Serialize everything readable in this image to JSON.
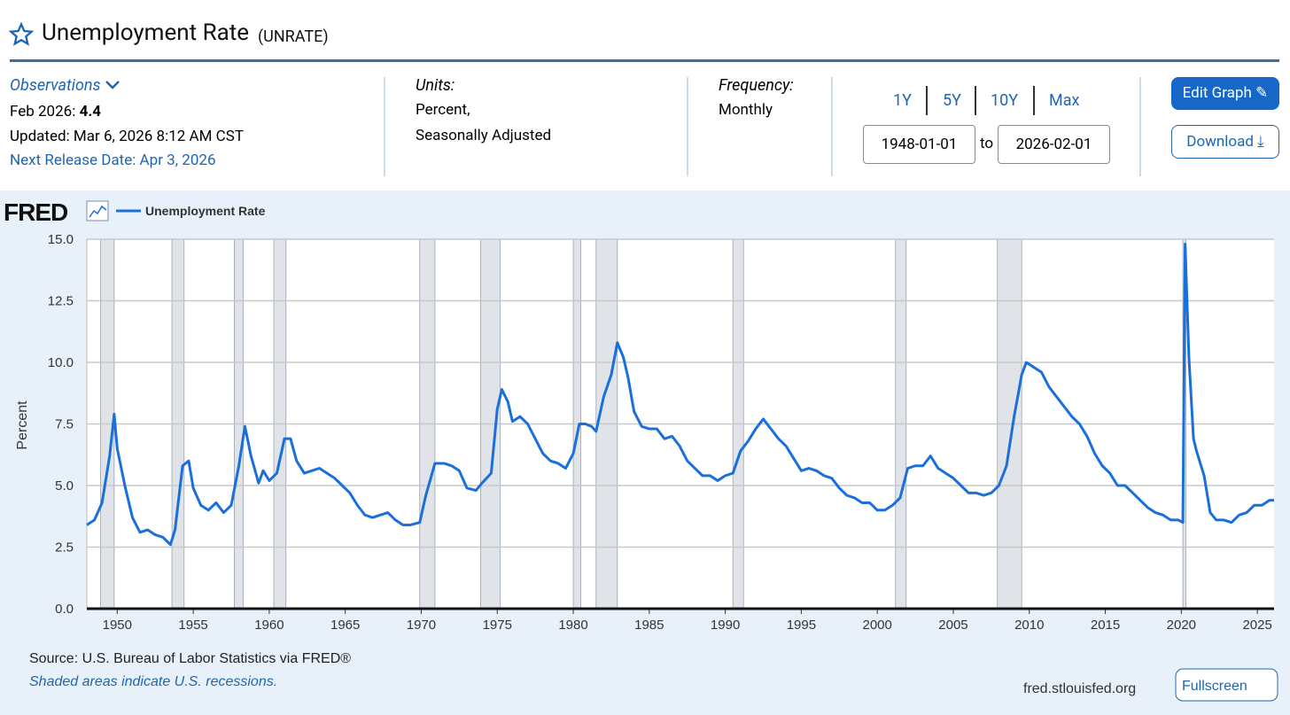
{
  "header": {
    "title": "Unemployment Rate",
    "code": "(UNRATE)"
  },
  "observations": {
    "label": "Observations",
    "date": "Feb 2026:",
    "value": "4.4",
    "updated": "Updated: Mar 6, 2026 8:12 AM CST",
    "next_release": "Next Release Date: Apr 3, 2026"
  },
  "units": {
    "label": "Units:",
    "lines": [
      "Percent,",
      "Seasonally Adjusted"
    ]
  },
  "frequency": {
    "label": "Frequency:",
    "value": "Monthly"
  },
  "ranges": [
    "1Y",
    "5Y",
    "10Y",
    "Max"
  ],
  "date_range": {
    "start": "1948-01-01",
    "to": "to",
    "end": "2026-02-01"
  },
  "buttons": {
    "edit": "Edit Graph",
    "download": "Download",
    "fullscreen": "Fullscreen"
  },
  "logo": "FRED",
  "footer": {
    "source": "Source: U.S. Bureau of Labor Statistics via FRED®",
    "note": "Shaded areas indicate U.S. recessions.",
    "site": "fred.stlouisfed.org"
  },
  "chart_data": {
    "type": "line",
    "y_label": "Percent",
    "xlim": [
      1948,
      2026.1
    ],
    "xticks": [
      1950,
      1955,
      1960,
      1965,
      1970,
      1975,
      1980,
      1985,
      1990,
      1995,
      2000,
      2005,
      2010,
      2015,
      2020,
      2025
    ],
    "ylim": [
      0,
      15
    ],
    "yticks": [
      {
        "value": 0,
        "label": "0.0"
      },
      2.5,
      {
        "value": 5,
        "label": "5.0"
      },
      7.5,
      {
        "value": 10,
        "label": "10.0"
      },
      12.5,
      {
        "value": 15,
        "label": "15.0"
      }
    ],
    "grid": true,
    "recession_color": "#e0e4e9",
    "recessions": [
      [
        1948.9,
        1949.8
      ],
      [
        1953.6,
        1954.4
      ],
      [
        1957.7,
        1958.3
      ],
      [
        1960.3,
        1961.1
      ],
      [
        1969.9,
        1970.9
      ],
      [
        1973.9,
        1975.2
      ],
      [
        1980.0,
        1980.5
      ],
      [
        1981.5,
        1982.9
      ],
      [
        1990.5,
        1991.2
      ],
      [
        2001.2,
        2001.9
      ],
      [
        2007.9,
        2009.5
      ],
      [
        2020.1,
        2020.3
      ]
    ],
    "x": [
      1948.0,
      1948.5,
      1949.0,
      1949.5,
      1949.8,
      1950.0,
      1950.5,
      1951.0,
      1951.5,
      1952.0,
      1952.5,
      1953.0,
      1953.5,
      1953.8,
      1954.3,
      1954.7,
      1955.0,
      1955.5,
      1956.0,
      1956.5,
      1957.0,
      1957.5,
      1958.0,
      1958.4,
      1958.8,
      1959.3,
      1959.6,
      1960.0,
      1960.5,
      1961.0,
      1961.4,
      1961.8,
      1962.3,
      1962.8,
      1963.3,
      1963.8,
      1964.3,
      1964.8,
      1965.3,
      1965.8,
      1966.3,
      1966.8,
      1967.3,
      1967.8,
      1968.3,
      1968.8,
      1969.3,
      1969.9,
      1970.3,
      1970.9,
      1971.5,
      1972.0,
      1972.5,
      1973.0,
      1973.6,
      1974.0,
      1974.6,
      1975.0,
      1975.3,
      1975.7,
      1976.0,
      1976.5,
      1977.0,
      1977.5,
      1978.0,
      1978.5,
      1979.0,
      1979.5,
      1980.0,
      1980.4,
      1980.8,
      1981.2,
      1981.5,
      1982.0,
      1982.5,
      1982.9,
      1983.3,
      1983.6,
      1984.0,
      1984.5,
      1985.0,
      1985.5,
      1986.0,
      1986.5,
      1987.0,
      1987.5,
      1988.0,
      1988.5,
      1989.0,
      1989.5,
      1990.0,
      1990.5,
      1991.0,
      1991.5,
      1992.0,
      1992.5,
      1993.0,
      1993.5,
      1994.0,
      1994.5,
      1995.0,
      1995.5,
      1996.0,
      1996.5,
      1997.0,
      1997.5,
      1998.0,
      1998.5,
      1999.0,
      1999.5,
      2000.0,
      2000.5,
      2001.0,
      2001.5,
      2002.0,
      2002.5,
      2003.0,
      2003.5,
      2004.0,
      2004.5,
      2005.0,
      2005.5,
      2006.0,
      2006.5,
      2007.0,
      2007.5,
      2008.0,
      2008.5,
      2009.0,
      2009.5,
      2009.8,
      2010.3,
      2010.8,
      2011.3,
      2011.8,
      2012.3,
      2012.8,
      2013.3,
      2013.8,
      2014.3,
      2014.8,
      2015.3,
      2015.8,
      2016.3,
      2016.8,
      2017.3,
      2017.8,
      2018.3,
      2018.8,
      2019.3,
      2019.8,
      2020.1,
      2020.25,
      2020.5,
      2020.8,
      2021.0,
      2021.5,
      2021.9,
      2022.3,
      2022.8,
      2023.3,
      2023.8,
      2024.3,
      2024.8,
      2025.3,
      2025.8,
      2026.1
    ],
    "series": [
      {
        "name": "Unemployment Rate",
        "color": "#1a6fdb",
        "values": [
          3.4,
          3.6,
          4.3,
          6.2,
          7.9,
          6.5,
          5.0,
          3.7,
          3.1,
          3.2,
          3.0,
          2.9,
          2.6,
          3.2,
          5.8,
          6.0,
          4.9,
          4.2,
          4.0,
          4.3,
          3.9,
          4.2,
          5.8,
          7.4,
          6.2,
          5.1,
          5.6,
          5.2,
          5.5,
          6.9,
          6.9,
          6.0,
          5.5,
          5.6,
          5.7,
          5.5,
          5.3,
          5.0,
          4.7,
          4.2,
          3.8,
          3.7,
          3.8,
          3.9,
          3.6,
          3.4,
          3.4,
          3.5,
          4.6,
          5.9,
          5.9,
          5.8,
          5.6,
          4.9,
          4.8,
          5.1,
          5.5,
          8.1,
          8.9,
          8.4,
          7.6,
          7.8,
          7.5,
          6.9,
          6.3,
          6.0,
          5.9,
          5.7,
          6.3,
          7.5,
          7.5,
          7.4,
          7.2,
          8.6,
          9.5,
          10.8,
          10.2,
          9.4,
          8.0,
          7.4,
          7.3,
          7.3,
          6.9,
          7.0,
          6.6,
          6.0,
          5.7,
          5.4,
          5.4,
          5.2,
          5.4,
          5.5,
          6.4,
          6.8,
          7.3,
          7.7,
          7.3,
          6.9,
          6.6,
          6.1,
          5.6,
          5.7,
          5.6,
          5.4,
          5.3,
          4.9,
          4.6,
          4.5,
          4.3,
          4.3,
          4.0,
          4.0,
          4.2,
          4.5,
          5.7,
          5.8,
          5.8,
          6.2,
          5.7,
          5.5,
          5.3,
          5.0,
          4.7,
          4.7,
          4.6,
          4.7,
          5.0,
          5.8,
          7.8,
          9.5,
          10.0,
          9.8,
          9.6,
          9.0,
          8.6,
          8.2,
          7.8,
          7.5,
          7.0,
          6.3,
          5.8,
          5.5,
          5.0,
          5.0,
          4.7,
          4.4,
          4.1,
          3.9,
          3.8,
          3.6,
          3.6,
          3.5,
          14.8,
          10.2,
          6.9,
          6.4,
          5.4,
          3.9,
          3.6,
          3.6,
          3.5,
          3.8,
          3.9,
          4.2,
          4.2,
          4.4,
          4.4
        ]
      }
    ]
  }
}
